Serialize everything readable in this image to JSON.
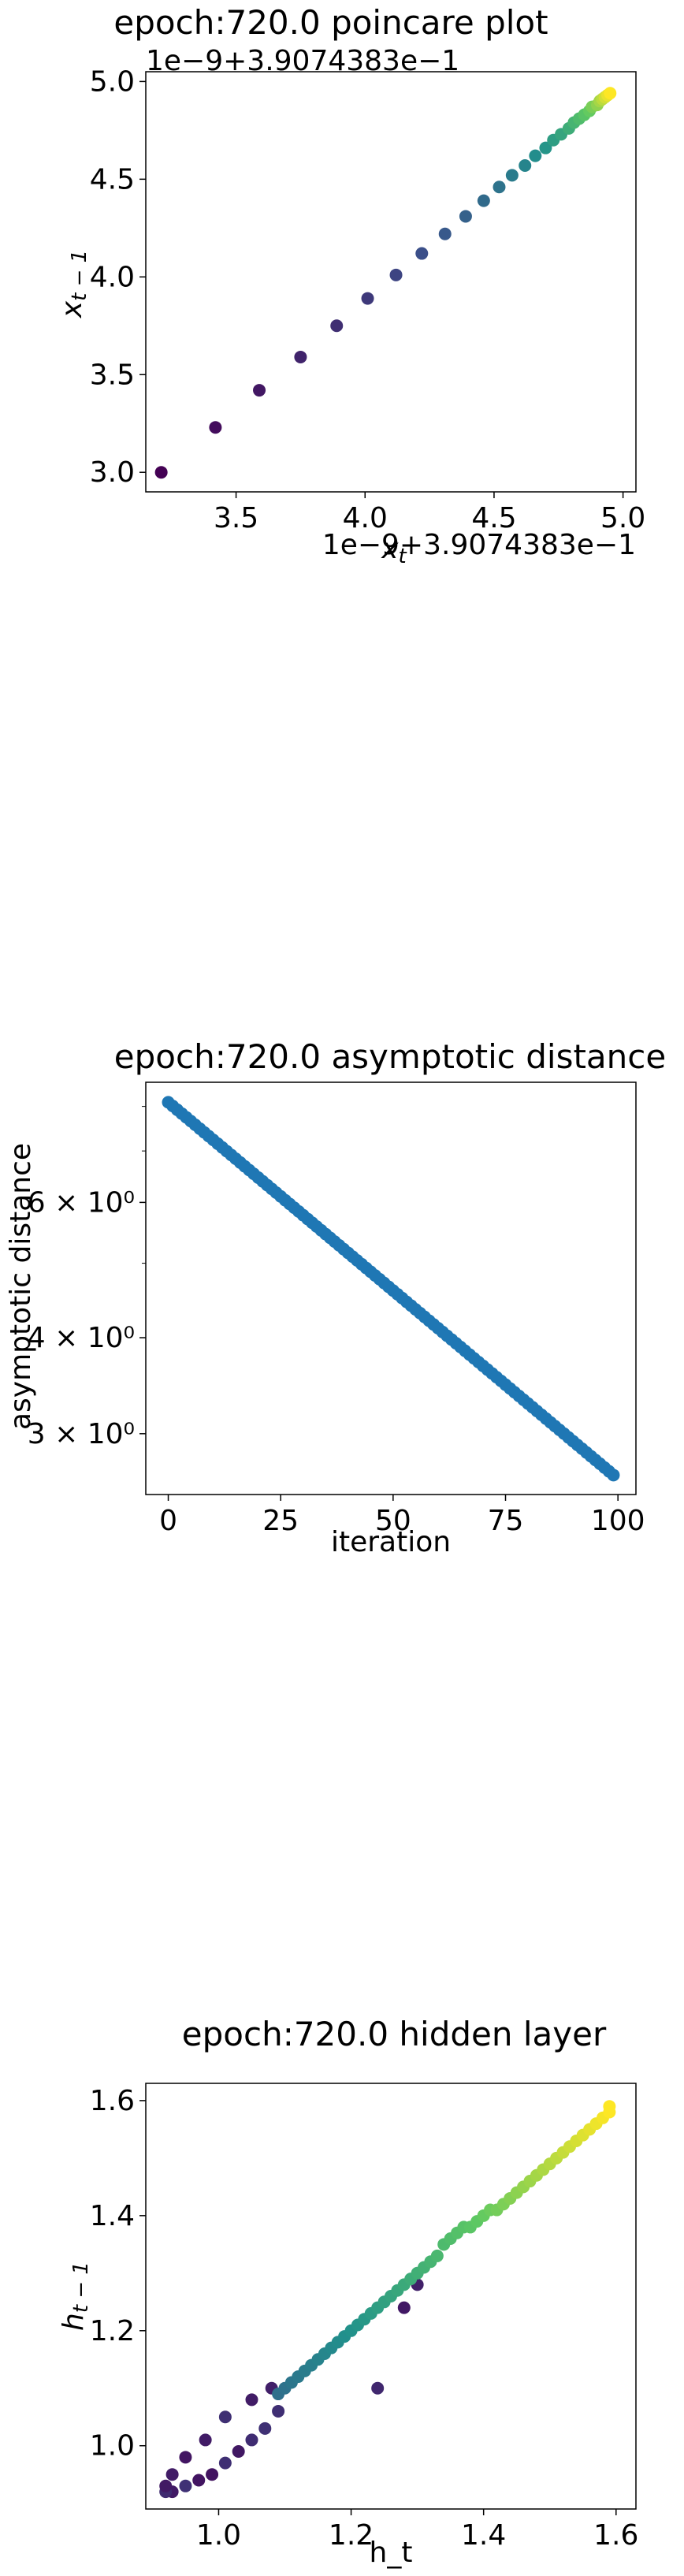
{
  "chart_data": [
    {
      "type": "scatter",
      "title": "epoch:720.0 poincare plot",
      "xlabel": "x_t",
      "ylabel": "x_{t-1}",
      "x_offset_label": "1e−9+3.9074383e−1",
      "y_offset_label": "1e−9+3.9074383e−1",
      "xlim": [
        3.15,
        5.05
      ],
      "ylim": [
        2.9,
        5.05
      ],
      "xticks": [
        3.5,
        4.0,
        4.5,
        5.0
      ],
      "xtick_labels": [
        "3.5",
        "4.0",
        "4.5",
        "5.0"
      ],
      "yticks": [
        3.0,
        3.5,
        4.0,
        4.5,
        5.0
      ],
      "ytick_labels": [
        "3.0",
        "3.5",
        "4.0",
        "4.5",
        "5.0"
      ],
      "colormap": "viridis",
      "x": [
        3.21,
        3.42,
        3.59,
        3.75,
        3.89,
        4.01,
        4.12,
        4.22,
        4.31,
        4.39,
        4.46,
        4.52,
        4.57,
        4.62,
        4.66,
        4.7,
        4.73,
        4.76,
        4.79,
        4.81,
        4.83,
        4.85,
        4.87,
        4.88,
        4.9,
        4.91,
        4.92,
        4.93,
        4.94,
        4.95
      ],
      "y": [
        3.0,
        3.23,
        3.42,
        3.59,
        3.75,
        3.89,
        4.01,
        4.12,
        4.22,
        4.31,
        4.39,
        4.46,
        4.52,
        4.57,
        4.62,
        4.66,
        4.7,
        4.73,
        4.76,
        4.79,
        4.81,
        4.83,
        4.85,
        4.87,
        4.88,
        4.9,
        4.91,
        4.92,
        4.93,
        4.94
      ],
      "grid": false
    },
    {
      "type": "scatter",
      "title": "epoch:720.0 asymptotic distance",
      "xlabel": "iteration",
      "ylabel": "asymptotic distance",
      "yscale": "log",
      "xlim": [
        -5,
        104
      ],
      "ylim": [
        2.5,
        8.6
      ],
      "xticks": [
        0,
        25,
        50,
        75,
        100
      ],
      "xtick_labels": [
        "0",
        "25",
        "50",
        "75",
        "100"
      ],
      "yticks": [
        3,
        4,
        6
      ],
      "ytick_labels": [
        "3 × 10⁰",
        "4 × 10⁰",
        "6 × 10⁰"
      ],
      "color": "#1f77b4",
      "points": 100,
      "y_start": 8.1,
      "y_end": 2.65,
      "grid": false
    },
    {
      "type": "scatter",
      "title": "epoch:720.0 hidden layer",
      "xlabel": "h_t",
      "ylabel": "h_{t-1}",
      "xlim": [
        0.89,
        1.63
      ],
      "ylim": [
        0.89,
        1.63
      ],
      "xticks": [
        1.0,
        1.2,
        1.4,
        1.6
      ],
      "xtick_labels": [
        "1.0",
        "1.2",
        "1.4",
        "1.6"
      ],
      "yticks": [
        1.0,
        1.2,
        1.4,
        1.6
      ],
      "ytick_labels": [
        "1.0",
        "1.2",
        "1.4",
        "1.6"
      ],
      "colormap": "viridis",
      "points": [
        [
          1.24,
          1.1
        ],
        [
          1.28,
          1.24
        ],
        [
          1.3,
          1.28
        ],
        [
          1.09,
          1.06
        ],
        [
          1.07,
          1.03
        ],
        [
          1.05,
          1.01
        ],
        [
          1.03,
          0.99
        ],
        [
          1.01,
          0.97
        ],
        [
          0.99,
          0.95
        ],
        [
          0.97,
          0.94
        ],
        [
          0.95,
          0.93
        ],
        [
          0.93,
          0.92
        ],
        [
          0.92,
          0.92
        ],
        [
          0.92,
          0.93
        ],
        [
          0.93,
          0.95
        ],
        [
          0.95,
          0.98
        ],
        [
          0.98,
          1.01
        ],
        [
          1.01,
          1.05
        ],
        [
          1.05,
          1.08
        ],
        [
          1.08,
          1.1
        ],
        [
          1.09,
          1.09
        ],
        [
          1.1,
          1.1
        ],
        [
          1.11,
          1.11
        ],
        [
          1.12,
          1.12
        ],
        [
          1.13,
          1.13
        ],
        [
          1.14,
          1.14
        ],
        [
          1.15,
          1.15
        ],
        [
          1.16,
          1.16
        ],
        [
          1.17,
          1.17
        ],
        [
          1.18,
          1.18
        ],
        [
          1.19,
          1.19
        ],
        [
          1.2,
          1.2
        ],
        [
          1.21,
          1.21
        ],
        [
          1.22,
          1.22
        ],
        [
          1.23,
          1.23
        ],
        [
          1.24,
          1.24
        ],
        [
          1.25,
          1.25
        ],
        [
          1.26,
          1.26
        ],
        [
          1.27,
          1.27
        ],
        [
          1.28,
          1.28
        ],
        [
          1.29,
          1.29
        ],
        [
          1.3,
          1.3
        ],
        [
          1.31,
          1.31
        ],
        [
          1.32,
          1.32
        ],
        [
          1.33,
          1.33
        ],
        [
          1.34,
          1.35
        ],
        [
          1.35,
          1.36
        ],
        [
          1.36,
          1.37
        ],
        [
          1.37,
          1.38
        ],
        [
          1.38,
          1.38
        ],
        [
          1.39,
          1.39
        ],
        [
          1.4,
          1.4
        ],
        [
          1.41,
          1.41
        ],
        [
          1.42,
          1.41
        ],
        [
          1.43,
          1.42
        ],
        [
          1.44,
          1.43
        ],
        [
          1.45,
          1.44
        ],
        [
          1.46,
          1.45
        ],
        [
          1.47,
          1.46
        ],
        [
          1.48,
          1.47
        ],
        [
          1.49,
          1.48
        ],
        [
          1.5,
          1.49
        ],
        [
          1.51,
          1.5
        ],
        [
          1.52,
          1.51
        ],
        [
          1.53,
          1.52
        ],
        [
          1.54,
          1.53
        ],
        [
          1.55,
          1.54
        ],
        [
          1.56,
          1.55
        ],
        [
          1.57,
          1.56
        ],
        [
          1.58,
          1.57
        ],
        [
          1.59,
          1.58
        ],
        [
          1.59,
          1.59
        ]
      ],
      "grid": false
    }
  ]
}
